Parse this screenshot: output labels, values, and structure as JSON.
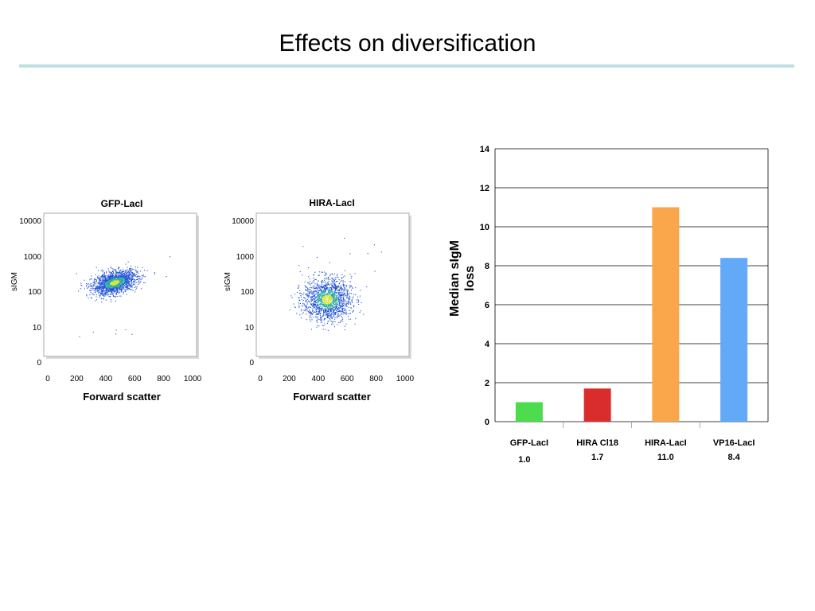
{
  "slide": {
    "title": "Effects on diversification"
  },
  "colors": {
    "title_rule": "#bfe0e2",
    "density_low": "#1d4fd6",
    "density_mid": "#2aa9a0",
    "density_high": "#d6e63a"
  },
  "chart_data": [
    {
      "type": "scatter",
      "title": "GFP-LacI",
      "xlabel": "Forward scatter",
      "ylabel": "sIGM",
      "x_ticks": [
        "0",
        "200",
        "400",
        "600",
        "800",
        "1000"
      ],
      "y_ticks": [
        "0",
        "10",
        "100",
        "1000",
        "10000"
      ],
      "xlim": [
        0,
        1000
      ],
      "y_scale": "log",
      "ylim": [
        0,
        10000
      ],
      "cloud": {
        "x_center": 460,
        "x_spread": 140,
        "y_center": 180,
        "y_spread_decades": 0.28
      },
      "grid": false
    },
    {
      "type": "scatter",
      "title": "HIRA-LacI",
      "xlabel": "Forward scatter",
      "ylabel": "sIGM",
      "x_ticks": [
        "0",
        "200",
        "400",
        "600",
        "800",
        "1000"
      ],
      "y_ticks": [
        "0",
        "10",
        "100",
        "1000",
        "10000"
      ],
      "xlim": [
        0,
        1000
      ],
      "y_scale": "log",
      "ylim": [
        0,
        10000
      ],
      "cloud": {
        "x_center": 460,
        "x_spread": 150,
        "y_center": 60,
        "y_spread_decades": 0.55
      },
      "grid": false
    },
    {
      "type": "bar",
      "ylabel": "Median sIgM loss",
      "categories": [
        "GFP-LacI",
        "HIRA Cl18",
        "HIRA-LacI",
        "VP16-LacI"
      ],
      "values": [
        1.0,
        1.7,
        11.0,
        8.4
      ],
      "value_labels": [
        "1.0",
        "1.7",
        "11.0",
        "8.4"
      ],
      "bar_colors": [
        "#4ddc4d",
        "#d92c2c",
        "#f9a74a",
        "#62aaf7"
      ],
      "ylim": [
        0,
        14
      ],
      "y_ticks": [
        "0",
        "2",
        "4",
        "6",
        "8",
        "10",
        "12",
        "14"
      ],
      "grid": true
    }
  ]
}
